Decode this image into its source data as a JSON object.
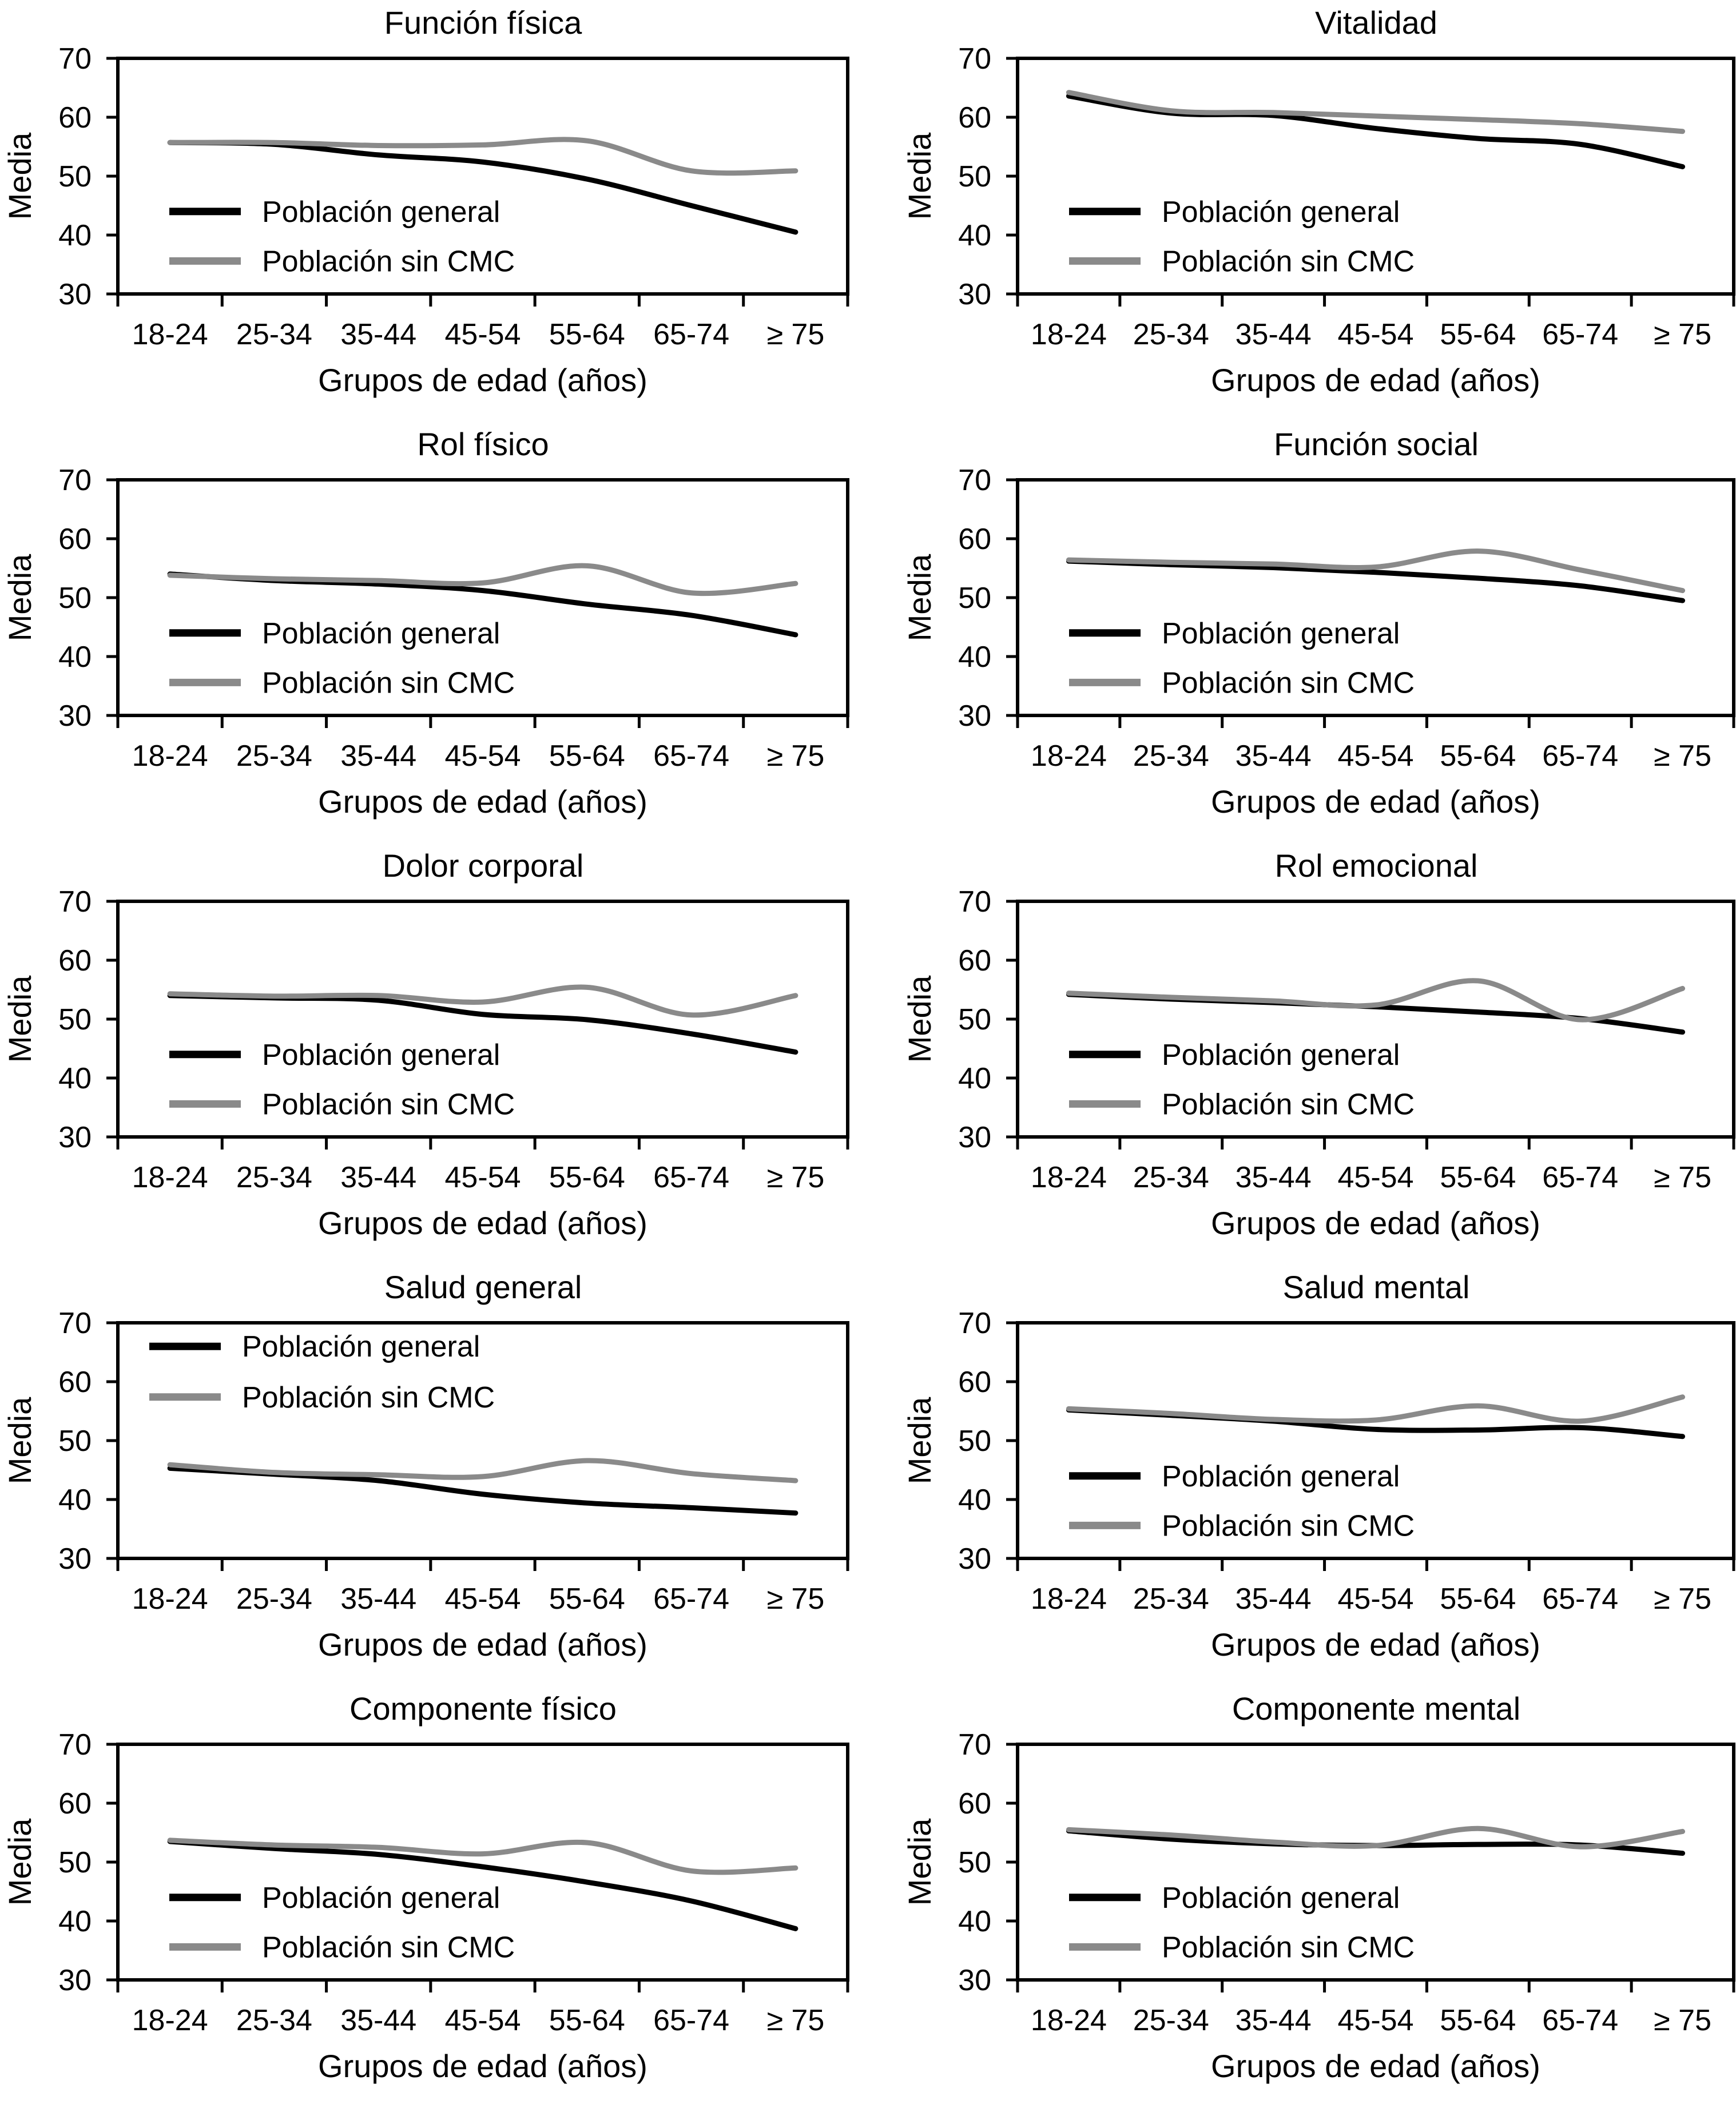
{
  "figure": {
    "ylabel": "Media",
    "xlabel": "Grupos de edad (años)",
    "categories": [
      "18-24",
      "25-34",
      "35-44",
      "45-54",
      "55-64",
      "65-74",
      "≥ 75"
    ],
    "yticks": [
      30,
      40,
      50,
      60,
      70
    ],
    "ylim": [
      30,
      70
    ],
    "legend_items": [
      "Población general",
      "Población sin CMC"
    ],
    "colors": {
      "general": "#000000",
      "sin_cmc": "#8a8a8a",
      "axis": "#000000",
      "background": "#ffffff"
    }
  },
  "chart_data": [
    {
      "type": "line",
      "title": "Función física",
      "ylabel": "Media",
      "xlabel": "Grupos de edad (años)",
      "ylim": [
        30,
        70
      ],
      "yticks": [
        30,
        40,
        50,
        60,
        70
      ],
      "grid": false,
      "legend_position": "bottom-left",
      "categories": [
        "18-24",
        "25-34",
        "35-44",
        "45-54",
        "55-64",
        "65-74",
        "≥ 75"
      ],
      "series": [
        {
          "name": "Población general",
          "color": "#000000",
          "values": [
            55.7,
            55.4,
            53.6,
            52.4,
            49.5,
            45.0,
            40.5
          ]
        },
        {
          "name": "Población sin CMC",
          "color": "#8a8a8a",
          "values": [
            55.7,
            55.7,
            55.2,
            55.3,
            56.0,
            50.9,
            50.9
          ]
        }
      ]
    },
    {
      "type": "line",
      "title": "Vitalidad",
      "ylabel": "Media",
      "xlabel": "Grupos de edad (años)",
      "ylim": [
        30,
        70
      ],
      "yticks": [
        30,
        40,
        50,
        60,
        70
      ],
      "grid": false,
      "legend_position": "bottom-left",
      "categories": [
        "18-24",
        "25-34",
        "35-44",
        "45-54",
        "55-64",
        "65-74",
        "≥ 75"
      ],
      "series": [
        {
          "name": "Población general",
          "color": "#000000",
          "values": [
            63.6,
            60.7,
            60.3,
            58.1,
            56.4,
            55.4,
            51.6
          ]
        },
        {
          "name": "Población sin CMC",
          "color": "#8a8a8a",
          "values": [
            64.2,
            61.1,
            60.8,
            60.2,
            59.6,
            58.9,
            57.6
          ]
        }
      ]
    },
    {
      "type": "line",
      "title": "Rol físico",
      "ylabel": "Media",
      "xlabel": "Grupos de edad (años)",
      "ylim": [
        30,
        70
      ],
      "yticks": [
        30,
        40,
        50,
        60,
        70
      ],
      "grid": false,
      "legend_position": "bottom-left",
      "categories": [
        "18-24",
        "25-34",
        "35-44",
        "45-54",
        "55-64",
        "65-74",
        "≥ 75"
      ],
      "series": [
        {
          "name": "Población general",
          "color": "#000000",
          "values": [
            54.0,
            52.9,
            52.3,
            51.2,
            48.9,
            47.0,
            43.7
          ]
        },
        {
          "name": "Población sin CMC",
          "color": "#8a8a8a",
          "values": [
            53.8,
            53.2,
            52.9,
            52.5,
            55.4,
            50.8,
            52.4
          ]
        }
      ]
    },
    {
      "type": "line",
      "title": "Función social",
      "ylabel": "Media",
      "xlabel": "Grupos de edad (años)",
      "ylim": [
        30,
        70
      ],
      "yticks": [
        30,
        40,
        50,
        60,
        70
      ],
      "grid": false,
      "legend_position": "bottom-left",
      "categories": [
        "18-24",
        "25-34",
        "35-44",
        "45-54",
        "55-64",
        "65-74",
        "≥ 75"
      ],
      "series": [
        {
          "name": "Población general",
          "color": "#000000",
          "values": [
            56.2,
            55.6,
            55.1,
            54.3,
            53.3,
            52.0,
            49.5
          ]
        },
        {
          "name": "Población sin CMC",
          "color": "#8a8a8a",
          "values": [
            56.4,
            56.0,
            55.7,
            55.2,
            57.9,
            54.7,
            51.2
          ]
        }
      ]
    },
    {
      "type": "line",
      "title": "Dolor corporal",
      "ylabel": "Media",
      "xlabel": "Grupos de edad (años)",
      "ylim": [
        30,
        70
      ],
      "yticks": [
        30,
        40,
        50,
        60,
        70
      ],
      "grid": false,
      "legend_position": "bottom-left",
      "categories": [
        "18-24",
        "25-34",
        "35-44",
        "45-54",
        "55-64",
        "65-74",
        "≥ 75"
      ],
      "series": [
        {
          "name": "Población general",
          "color": "#000000",
          "values": [
            54.0,
            53.6,
            53.2,
            50.8,
            49.9,
            47.5,
            44.4
          ]
        },
        {
          "name": "Población sin CMC",
          "color": "#8a8a8a",
          "values": [
            54.3,
            53.9,
            54.0,
            52.9,
            55.4,
            50.7,
            54.0
          ]
        }
      ]
    },
    {
      "type": "line",
      "title": "Rol emocional",
      "ylabel": "Media",
      "xlabel": "Grupos de edad (años)",
      "ylim": [
        30,
        70
      ],
      "yticks": [
        30,
        40,
        50,
        60,
        70
      ],
      "grid": false,
      "legend_position": "bottom-left",
      "categories": [
        "18-24",
        "25-34",
        "35-44",
        "45-54",
        "55-64",
        "65-74",
        "≥ 75"
      ],
      "series": [
        {
          "name": "Población general",
          "color": "#000000",
          "values": [
            54.2,
            53.4,
            52.8,
            52.1,
            51.2,
            50.1,
            47.8
          ]
        },
        {
          "name": "Población sin CMC",
          "color": "#8a8a8a",
          "values": [
            54.4,
            53.7,
            53.1,
            52.4,
            56.5,
            49.9,
            55.2
          ]
        }
      ]
    },
    {
      "type": "line",
      "title": "Salud general",
      "ylabel": "Media",
      "xlabel": "Grupos de edad (años)",
      "ylim": [
        30,
        70
      ],
      "yticks": [
        30,
        40,
        50,
        60,
        70
      ],
      "grid": false,
      "legend_position": "top-left",
      "categories": [
        "18-24",
        "25-34",
        "35-44",
        "45-54",
        "55-64",
        "65-74",
        "≥ 75"
      ],
      "series": [
        {
          "name": "Población general",
          "color": "#000000",
          "values": [
            45.3,
            44.3,
            43.2,
            40.9,
            39.4,
            38.6,
            37.7
          ]
        },
        {
          "name": "Población sin CMC",
          "color": "#8a8a8a",
          "values": [
            45.9,
            44.6,
            44.2,
            43.9,
            46.6,
            44.4,
            43.2
          ]
        }
      ]
    },
    {
      "type": "line",
      "title": "Salud mental",
      "ylabel": "Media",
      "xlabel": "Grupos de edad (años)",
      "ylim": [
        30,
        70
      ],
      "yticks": [
        30,
        40,
        50,
        60,
        70
      ],
      "grid": false,
      "legend_position": "bottom-left",
      "categories": [
        "18-24",
        "25-34",
        "35-44",
        "45-54",
        "55-64",
        "65-74",
        "≥ 75"
      ],
      "series": [
        {
          "name": "Población general",
          "color": "#000000",
          "values": [
            55.2,
            54.3,
            53.3,
            51.9,
            51.8,
            52.2,
            50.7
          ]
        },
        {
          "name": "Población sin CMC",
          "color": "#8a8a8a",
          "values": [
            55.4,
            54.6,
            53.6,
            53.5,
            55.9,
            53.3,
            57.4
          ]
        }
      ]
    },
    {
      "type": "line",
      "title": "Componente físico",
      "ylabel": "Media",
      "xlabel": "Grupos de edad (años)",
      "ylim": [
        30,
        70
      ],
      "yticks": [
        30,
        40,
        50,
        60,
        70
      ],
      "grid": false,
      "legend_position": "bottom-left",
      "categories": [
        "18-24",
        "25-34",
        "35-44",
        "45-54",
        "55-64",
        "65-74",
        "≥ 75"
      ],
      "series": [
        {
          "name": "Población general",
          "color": "#000000",
          "values": [
            53.5,
            52.3,
            51.3,
            49.2,
            46.6,
            43.4,
            38.7
          ]
        },
        {
          "name": "Población sin CMC",
          "color": "#8a8a8a",
          "values": [
            53.7,
            52.9,
            52.5,
            51.4,
            53.3,
            48.5,
            49.0
          ]
        }
      ]
    },
    {
      "type": "line",
      "title": "Componente mental",
      "ylabel": "Media",
      "xlabel": "Grupos de edad (años)",
      "ylim": [
        30,
        70
      ],
      "yticks": [
        30,
        40,
        50,
        60,
        70
      ],
      "grid": false,
      "legend_position": "bottom-left",
      "categories": [
        "18-24",
        "25-34",
        "35-44",
        "45-54",
        "55-64",
        "65-74",
        "≥ 75"
      ],
      "series": [
        {
          "name": "Población general",
          "color": "#000000",
          "values": [
            55.3,
            53.9,
            53.1,
            52.8,
            53.0,
            52.9,
            51.5
          ]
        },
        {
          "name": "Población sin CMC",
          "color": "#8a8a8a",
          "values": [
            55.5,
            54.6,
            53.4,
            52.8,
            55.7,
            52.6,
            55.2
          ]
        }
      ]
    }
  ]
}
